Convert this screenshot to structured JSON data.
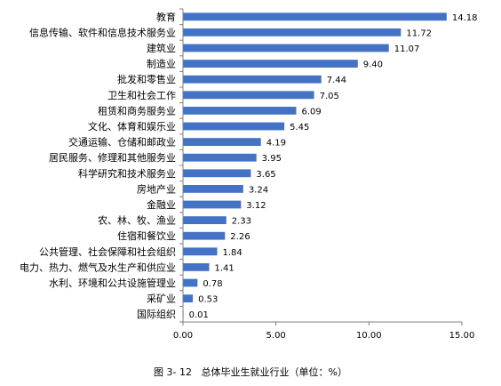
{
  "chart_data": {
    "type": "bar",
    "orientation": "horizontal",
    "categories": [
      "教育",
      "信息传输、软件和信息技术服务业",
      "建筑业",
      "制造业",
      "批发和零售业",
      "卫生和社会工作",
      "租赁和商务服务业",
      "文化、体育和娱乐业",
      "交通运输、仓储和邮政业",
      "居民服务、修理和其他服务业",
      "科学研究和技术服务业",
      "房地产业",
      "金融业",
      "农、林、牧、渔业",
      "住宿和餐饮业",
      "公共管理、社会保障和社会组织",
      "电力、热力、燃气及水生产和供应业",
      "水利、环境和公共设施管理业",
      "采矿业",
      "国际组织"
    ],
    "values": [
      14.18,
      11.72,
      11.07,
      9.4,
      7.44,
      7.05,
      6.09,
      5.45,
      4.19,
      3.95,
      3.65,
      3.24,
      3.12,
      2.33,
      2.26,
      1.84,
      1.41,
      0.78,
      0.53,
      0.01
    ],
    "value_labels": [
      "14.18",
      "11.72",
      "11.07",
      "9.40",
      "7.44",
      "7.05",
      "6.09",
      "5.45",
      "4.19",
      "3.95",
      "3.65",
      "3.24",
      "3.12",
      "2.33",
      "2.26",
      "1.84",
      "1.41",
      "0.78",
      "0.53",
      "0.01"
    ],
    "xlim": [
      0,
      15
    ],
    "xticks": [
      "0.00",
      "5.00",
      "10.00",
      "15.00"
    ],
    "xtick_values": [
      0,
      5,
      10,
      15
    ],
    "grid": false,
    "bar_color": "#4472C4",
    "axis_color": "#808080"
  },
  "caption": "图 3- 12   总体毕业生就业行业（单位：%）"
}
